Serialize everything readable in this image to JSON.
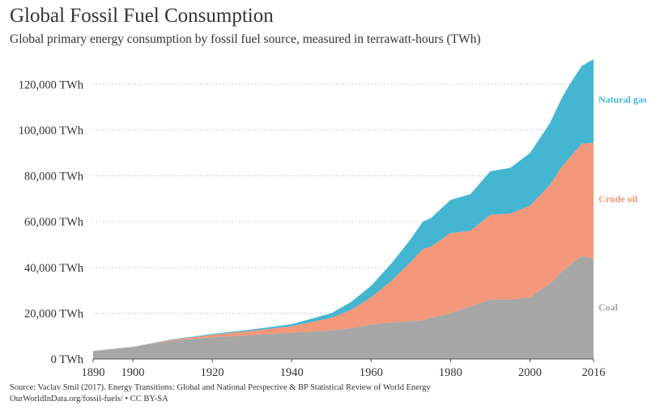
{
  "header": {
    "title": "Global Fossil Fuel Consumption",
    "subtitle": "Global primary energy consumption by fossil fuel source, measured in terrawatt-hours (TWh)"
  },
  "footer": {
    "source_line1": "Source: Vaclav Smil (2017). Energy Transitions: Global and National Perspective & BP Statistical Review of World Energy",
    "source_line2": "OurWorldInData.org/fossil-fuels/ • CC BY-SA"
  },
  "chart_data": {
    "type": "area",
    "stacked": true,
    "title": "Global Fossil Fuel Consumption",
    "subtitle": "Global primary energy consumption by fossil fuel source, measured in terrawatt-hours (TWh)",
    "xlim": [
      1890,
      2016
    ],
    "ylim": [
      0,
      130000
    ],
    "y_ticks": [
      0,
      20000,
      40000,
      60000,
      80000,
      100000,
      120000
    ],
    "y_tick_labels": [
      "0 TWh",
      "20,000 TWh",
      "40,000 TWh",
      "60,000 TWh",
      "80,000 TWh",
      "100,000 TWh",
      "120,000 TWh"
    ],
    "x_ticks": [
      1890,
      1900,
      1920,
      1940,
      1960,
      1980,
      2000,
      2016
    ],
    "x_tick_labels": [
      "1890",
      "1900",
      "1920",
      "1940",
      "1960",
      "1980",
      "2000",
      "2016"
    ],
    "grid": "horizontal dotted",
    "legend": "inline labels at right",
    "x": [
      1890,
      1900,
      1910,
      1920,
      1930,
      1940,
      1950,
      1955,
      1960,
      1965,
      1970,
      1973,
      1975,
      1980,
      1985,
      1990,
      1995,
      2000,
      2005,
      2008,
      2010,
      2013,
      2016
    ],
    "series": [
      {
        "name": "Coal",
        "color": "#a7a7a7",
        "values": [
          3500,
          5200,
          8000,
          9500,
          10500,
          11500,
          12500,
          13500,
          15000,
          16000,
          16500,
          17000,
          18000,
          20000,
          23000,
          26000,
          26000,
          27000,
          33000,
          38000,
          41000,
          45000,
          44000
        ]
      },
      {
        "name": "Crude oil",
        "color": "#f4977a",
        "values": [
          0,
          100,
          400,
          1000,
          1800,
          2800,
          5500,
          8000,
          12000,
          18000,
          26000,
          31000,
          31000,
          35000,
          33000,
          37000,
          37500,
          40000,
          43000,
          46000,
          47000,
          49000,
          50500
        ]
      },
      {
        "name": "Natural gas",
        "color": "#45b6d1",
        "values": [
          0,
          50,
          200,
          400,
          600,
          900,
          2000,
          3500,
          5000,
          7500,
          10000,
          12000,
          12500,
          14500,
          16000,
          19000,
          20000,
          23000,
          27000,
          30000,
          32000,
          34000,
          36500
        ]
      }
    ]
  }
}
